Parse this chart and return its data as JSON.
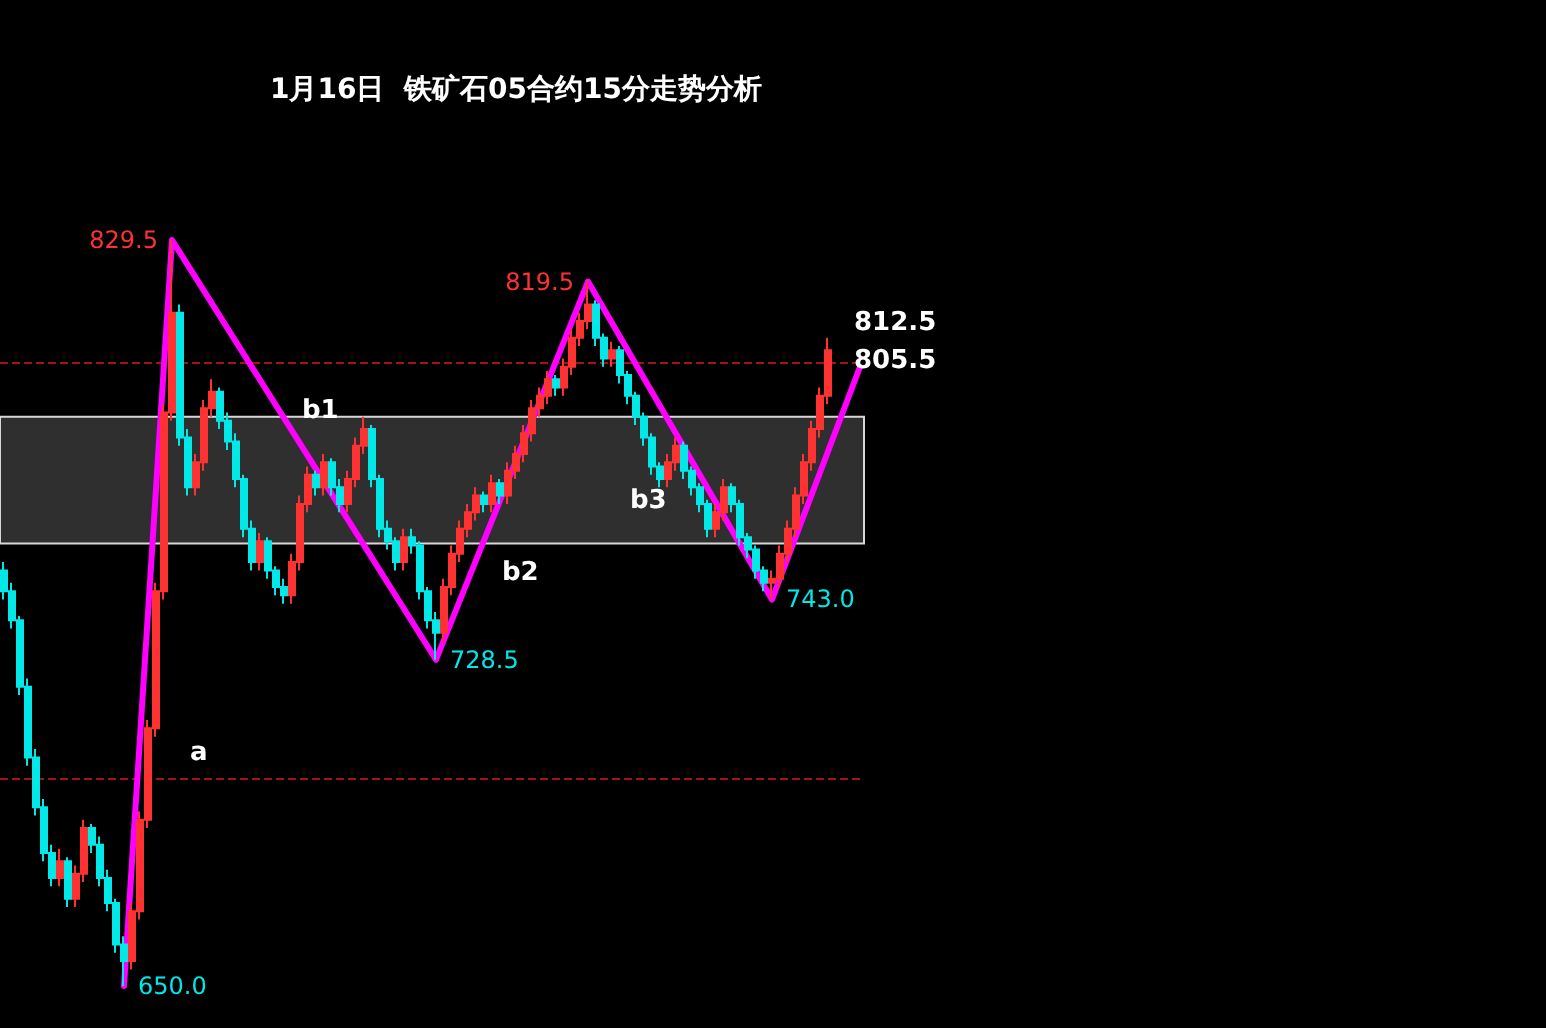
{
  "chart_data": {
    "type": "candlestick",
    "title": "1月16日  铁矿石05合约15分走势分析",
    "categories": [
      null,
      null,
      null,
      null,
      null,
      null,
      null,
      null,
      null,
      null,
      null,
      null,
      null,
      null,
      null,
      null,
      null,
      null,
      null,
      null,
      null,
      null,
      null,
      null,
      null,
      null,
      null,
      null,
      null,
      null,
      null,
      null,
      null,
      null,
      null,
      null,
      null,
      null,
      null,
      null,
      null,
      null,
      null,
      null,
      null,
      null,
      null,
      null,
      null,
      null,
      null,
      null,
      null,
      null,
      null,
      null,
      null,
      null,
      null,
      null,
      null,
      null,
      null,
      null,
      null,
      null,
      null,
      null,
      null,
      null,
      null,
      null,
      null,
      null,
      null,
      null,
      null,
      null,
      null,
      null,
      null,
      null,
      null,
      null,
      null,
      null,
      null,
      null,
      null,
      null,
      null,
      null,
      null,
      null,
      null,
      null,
      null,
      null,
      null,
      null,
      null,
      null,
      null,
      null,
      null,
      null,
      null,
      null
    ],
    "colors": [
      "#00e8e8",
      "#00e8e8",
      "#00e8e8",
      "#00e8e8",
      "#00e8e8",
      "#00e8e8",
      "#00e8e8",
      "#ff3232",
      "#00e8e8",
      "#ff3232",
      "#ff3232",
      "#00e8e8",
      "#00e8e8",
      "#00e8e8",
      "#00e8e8",
      "#00e8e8",
      "#ff3232",
      "#ff3232",
      "#ff3232",
      "#ff3232",
      "#ff3232",
      "#ff3232",
      "#00e8e8",
      "#00e8e8",
      "#ff3232",
      "#ff3232",
      "#ff3232",
      "#00e8e8",
      "#00e8e8",
      "#00e8e8",
      "#00e8e8",
      "#00e8e8",
      "#ff3232",
      "#00e8e8",
      "#00e8e8",
      "#00e8e8",
      "#ff3232",
      "#ff3232",
      "#ff3232",
      "#00e8e8",
      "#ff3232",
      "#00e8e8",
      "#00e8e8",
      "#ff3232",
      "#ff3232",
      "#ff3232",
      "#00e8e8",
      "#00e8e8",
      "#00e8e8",
      "#00e8e8",
      "#ff3232",
      "#00e8e8",
      "#00e8e8",
      "#00e8e8",
      "#00e8e8",
      "#ff3232",
      "#ff3232",
      "#ff3232",
      "#ff3232",
      "#ff3232",
      "#00e8e8",
      "#ff3232",
      "#00e8e8",
      "#ff3232",
      "#ff3232",
      "#ff3232",
      "#ff3232",
      "#ff3232",
      "#ff3232",
      "#00e8e8",
      "#ff3232",
      "#ff3232",
      "#ff3232",
      "#ff3232",
      "#00e8e8",
      "#00e8e8",
      "#ff3232",
      "#00e8e8",
      "#00e8e8",
      "#00e8e8",
      "#00e8e8",
      "#00e8e8",
      "#00e8e8",
      "#ff3232",
      "#ff3232",
      "#00e8e8",
      "#00e8e8",
      "#00e8e8",
      "#00e8e8",
      "#ff3232",
      "#ff3232",
      "#00e8e8",
      "#00e8e8",
      "#00e8e8",
      "#00e8e8",
      "#00e8e8",
      "#ff3232",
      "#ff3232",
      "#ff3232",
      "#ff3232",
      "#ff3232",
      "#ff3232",
      "#ff3232",
      "#ff3232",
      null,
      null,
      null,
      null
    ],
    "ohlc": [
      [
        750,
        752,
        743,
        745
      ],
      [
        745,
        747,
        736,
        738
      ],
      [
        738,
        739,
        720,
        722
      ],
      [
        722,
        724,
        703,
        705
      ],
      [
        705,
        707,
        691,
        693
      ],
      [
        693,
        695,
        680,
        682
      ],
      [
        682,
        684,
        674,
        676
      ],
      [
        676,
        683,
        674,
        680
      ],
      [
        680,
        681,
        669,
        671
      ],
      [
        671,
        679,
        669,
        677
      ],
      [
        677,
        690,
        675,
        688
      ],
      [
        688,
        689,
        682,
        684
      ],
      [
        684,
        686,
        674,
        676
      ],
      [
        676,
        678,
        668,
        670
      ],
      [
        670,
        671,
        658,
        660
      ],
      [
        660,
        662,
        650,
        656
      ],
      [
        656,
        670,
        654,
        668
      ],
      [
        668,
        692,
        666,
        690
      ],
      [
        690,
        714,
        688,
        712
      ],
      [
        712,
        747,
        710,
        745
      ],
      [
        745,
        790,
        743,
        788
      ],
      [
        788,
        829.5,
        786,
        812
      ],
      [
        812,
        814,
        780,
        782
      ],
      [
        782,
        784,
        768,
        770
      ],
      [
        770,
        778,
        768,
        776
      ],
      [
        776,
        791,
        774,
        789
      ],
      [
        789,
        796,
        787,
        793
      ],
      [
        793,
        794,
        784,
        786
      ],
      [
        786,
        788,
        779,
        781
      ],
      [
        781,
        783,
        770,
        772
      ],
      [
        772,
        773,
        758,
        760
      ],
      [
        760,
        762,
        750,
        752
      ],
      [
        752,
        759,
        750,
        757
      ],
      [
        757,
        758,
        748,
        750
      ],
      [
        750,
        751,
        744,
        746
      ],
      [
        746,
        748,
        742,
        744
      ],
      [
        744,
        754,
        742,
        752
      ],
      [
        752,
        768,
        750,
        766
      ],
      [
        766,
        775,
        764,
        773
      ],
      [
        773,
        774,
        768,
        770
      ],
      [
        770,
        778,
        768,
        776
      ],
      [
        776,
        777,
        768,
        770
      ],
      [
        770,
        772,
        764,
        766
      ],
      [
        766,
        774,
        764,
        772
      ],
      [
        772,
        782,
        770,
        780
      ],
      [
        780,
        787,
        778,
        784
      ],
      [
        784,
        785,
        770,
        772
      ],
      [
        772,
        773,
        758,
        760
      ],
      [
        760,
        762,
        755,
        757
      ],
      [
        757,
        758,
        750,
        752
      ],
      [
        752,
        760,
        750,
        758
      ],
      [
        758,
        760,
        754,
        756
      ],
      [
        756,
        757,
        743,
        745
      ],
      [
        745,
        746,
        736,
        738
      ],
      [
        738,
        740,
        728.5,
        735
      ],
      [
        735,
        748,
        733,
        746
      ],
      [
        746,
        756,
        744,
        754
      ],
      [
        754,
        762,
        752,
        760
      ],
      [
        760,
        766,
        758,
        764
      ],
      [
        764,
        770,
        762,
        768
      ],
      [
        768,
        769,
        764,
        766
      ],
      [
        766,
        773,
        764,
        771
      ],
      [
        771,
        772,
        766,
        768
      ],
      [
        768,
        776,
        766,
        774
      ],
      [
        774,
        780,
        772,
        778
      ],
      [
        778,
        785,
        776,
        783
      ],
      [
        783,
        791,
        781,
        789
      ],
      [
        789,
        794,
        787,
        792
      ],
      [
        792,
        798,
        790,
        796
      ],
      [
        796,
        797,
        792,
        794
      ],
      [
        794,
        801,
        792,
        799
      ],
      [
        799,
        808,
        797,
        806
      ],
      [
        806,
        812,
        804,
        810
      ],
      [
        810,
        819.5,
        808,
        814
      ],
      [
        814,
        815,
        804,
        806
      ],
      [
        806,
        807,
        799,
        801
      ],
      [
        801,
        805,
        799,
        803
      ],
      [
        803,
        804,
        795,
        797
      ],
      [
        797,
        798,
        790,
        792
      ],
      [
        792,
        793,
        785,
        787
      ],
      [
        787,
        788,
        780,
        782
      ],
      [
        782,
        783,
        773,
        775
      ],
      [
        775,
        776,
        770,
        772
      ],
      [
        772,
        778,
        770,
        776
      ],
      [
        776,
        782,
        774,
        780
      ],
      [
        780,
        781,
        772,
        774
      ],
      [
        774,
        775,
        768,
        770
      ],
      [
        770,
        771,
        764,
        766
      ],
      [
        766,
        767,
        758,
        760
      ],
      [
        760,
        766,
        758,
        764
      ],
      [
        764,
        772,
        762,
        770
      ],
      [
        770,
        771,
        764,
        766
      ],
      [
        766,
        767,
        756,
        758
      ],
      [
        758,
        759,
        753,
        755
      ],
      [
        755,
        756,
        748,
        750
      ],
      [
        750,
        751,
        745,
        747
      ],
      [
        747,
        750,
        743,
        748
      ],
      [
        748,
        756,
        746,
        754
      ],
      [
        754,
        762,
        752,
        760
      ],
      [
        760,
        770,
        758,
        768
      ],
      [
        768,
        778,
        766,
        776
      ],
      [
        776,
        786,
        774,
        784
      ],
      [
        784,
        794,
        782,
        792
      ],
      [
        792,
        806,
        790,
        803
      ],
      null,
      null,
      null,
      null
    ],
    "series": [
      {
        "type": "line",
        "color": "#ff00ff",
        "values": [
          null,
          null,
          null,
          null,
          null,
          null,
          null,
          null,
          null,
          null,
          null,
          null,
          null,
          null,
          null,
          650,
          null,
          null,
          null,
          null,
          null,
          829.5,
          null,
          null,
          null,
          null,
          null,
          null,
          null,
          null,
          null,
          null,
          null,
          null,
          null,
          null,
          null,
          null,
          null,
          null,
          null,
          null,
          null,
          null,
          null,
          null,
          null,
          null,
          null,
          null,
          null,
          null,
          null,
          null,
          728.5,
          null,
          null,
          null,
          null,
          null,
          null,
          null,
          null,
          null,
          null,
          null,
          null,
          null,
          null,
          null,
          null,
          null,
          null,
          819.5,
          null,
          null,
          null,
          null,
          null,
          null,
          null,
          null,
          null,
          null,
          null,
          null,
          null,
          null,
          null,
          null,
          null,
          null,
          null,
          null,
          null,
          null,
          743,
          null,
          null,
          null,
          null,
          null,
          null,
          null,
          null,
          null,
          null,
          799
        ],
        "value_labels": [
          null,
          null,
          null,
          null,
          null,
          null,
          null,
          null,
          null,
          null,
          null,
          null,
          null,
          null,
          null,
          "650.0",
          null,
          null,
          null,
          null,
          null,
          "829.5",
          null,
          null,
          null,
          null,
          null,
          null,
          null,
          null,
          null,
          null,
          null,
          null,
          null,
          null,
          null,
          null,
          null,
          null,
          null,
          null,
          null,
          null,
          null,
          null,
          null,
          null,
          null,
          null,
          null,
          null,
          null,
          null,
          "728.5",
          null,
          null,
          null,
          null,
          null,
          null,
          null,
          null,
          null,
          null,
          null,
          null,
          null,
          null,
          null,
          null,
          null,
          null,
          "819.5",
          null,
          null,
          null,
          null,
          null,
          null,
          null,
          null,
          null,
          null,
          null,
          null,
          null,
          null,
          null,
          null,
          null,
          null,
          null,
          null,
          null,
          null,
          "743.0",
          null,
          null,
          null,
          null,
          null,
          null,
          null,
          null,
          null,
          null,
          null
        ]
      }
    ],
    "ref_lines": [
      {
        "axis": "y",
        "value": 800,
        "color": "#a01414",
        "line_style": "dashed"
      },
      {
        "axis": "y",
        "value": 700,
        "color": "#a01414",
        "line_style": "dashed"
      }
    ],
    "bands": [
      {
        "axis": "y",
        "from": 756.5,
        "to": 787,
        "color": "#d8d8d8"
      }
    ],
    "annotations": [
      "a",
      "b1",
      "b2",
      "b3",
      "812.5",
      "805.5"
    ]
  }
}
